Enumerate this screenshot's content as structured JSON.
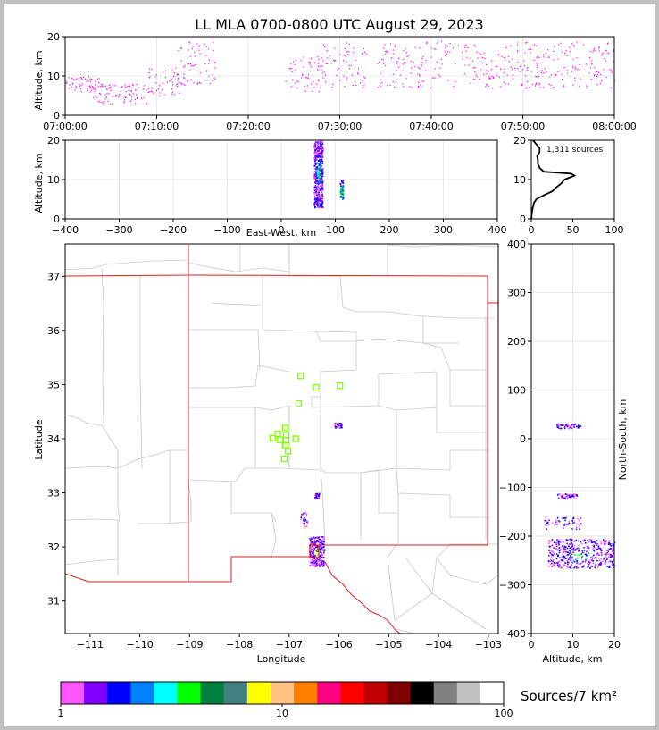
{
  "chart_data": [
    {
      "id": "time-height",
      "type": "scatter",
      "title": "LL MLA 0700-0800 UTC August 29, 2023",
      "ylabel": "Altitude, km",
      "xlim": [
        "07:00:00",
        "08:00:00"
      ],
      "ylim": [
        0,
        20
      ],
      "xticks": [
        "07:00:00",
        "07:10:00",
        "07:20:00",
        "07:30:00",
        "07:40:00",
        "07:50:00",
        "08:00:00"
      ],
      "yticks": [
        0,
        10,
        20
      ],
      "grid": true,
      "point_color": "#ff00ff",
      "bands": [
        {
          "x": [
            "07:00:00",
            "07:04:00"
          ],
          "y": [
            6,
            10
          ]
        },
        {
          "x": [
            "07:03:00",
            "07:09:00"
          ],
          "y": [
            3,
            8
          ]
        },
        {
          "x": [
            "07:09:00",
            "07:13:00"
          ],
          "y": [
            5,
            12
          ]
        },
        {
          "x": [
            "07:12:00",
            "07:16:30"
          ],
          "y": [
            8,
            19
          ]
        },
        {
          "x": [
            "07:24:00",
            "07:28:00"
          ],
          "y": [
            6,
            15
          ]
        },
        {
          "x": [
            "07:28:00",
            "07:33:00"
          ],
          "y": [
            7,
            19
          ]
        },
        {
          "x": [
            "07:34:00",
            "08:00:00"
          ],
          "y": [
            7,
            19
          ]
        }
      ]
    },
    {
      "id": "ew-height",
      "type": "heatmap",
      "xlabel": "East-West, km",
      "ylabel": "Altitude, km",
      "xlim": [
        -400,
        400
      ],
      "ylim": [
        0,
        20
      ],
      "xticks": [
        -400,
        -300,
        -200,
        -100,
        0,
        100,
        200,
        300,
        400
      ],
      "yticks": [
        0,
        10,
        20
      ],
      "grid": true,
      "clusters": [
        {
          "x": [
            60,
            76
          ],
          "y": [
            3,
            20
          ],
          "peak": [
            69,
            12
          ]
        },
        {
          "x": [
            108,
            114
          ],
          "y": [
            5,
            10
          ],
          "peak": [
            111,
            7
          ]
        }
      ]
    },
    {
      "id": "altitude-histogram",
      "type": "line",
      "annotation": "1,311 sources",
      "xlim": [
        0,
        100
      ],
      "ylim": [
        0,
        20
      ],
      "xticks": [
        0,
        50,
        100
      ],
      "yticks": [
        0,
        10,
        20
      ],
      "altitude": [
        0,
        2,
        4,
        5,
        6,
        7,
        8,
        9,
        10,
        11,
        11.5,
        12,
        13,
        14,
        15,
        16,
        17,
        18,
        19,
        20
      ],
      "count": [
        0,
        1,
        3,
        6,
        15,
        25,
        30,
        36,
        40,
        52,
        48,
        15,
        10,
        8,
        8,
        7,
        10,
        10,
        6,
        2
      ]
    },
    {
      "id": "plan-view",
      "type": "scatter",
      "xlabel": "Longitude",
      "ylabel": "Latitude",
      "xlim": [
        -111.5,
        -102.8
      ],
      "ylim": [
        30.4,
        37.6
      ],
      "xticks": [
        -111,
        -110,
        -109,
        -108,
        -107,
        -106,
        -105,
        -104,
        -103
      ],
      "yticks": [
        31,
        32,
        33,
        34,
        35,
        36,
        37
      ],
      "stations_color": "#7fff00",
      "stations": [
        {
          "lon": -106.77,
          "lat": 35.16
        },
        {
          "lon": -106.46,
          "lat": 34.95
        },
        {
          "lon": -105.98,
          "lat": 34.98
        },
        {
          "lon": -106.81,
          "lat": 34.65
        },
        {
          "lon": -107.08,
          "lat": 34.2
        },
        {
          "lon": -107.23,
          "lat": 34.09
        },
        {
          "lon": -107.06,
          "lat": 34.07
        },
        {
          "lon": -107.33,
          "lat": 34.01
        },
        {
          "lon": -107.18,
          "lat": 33.98
        },
        {
          "lon": -107.06,
          "lat": 33.97
        },
        {
          "lon": -106.87,
          "lat": 34.0
        },
        {
          "lon": -107.08,
          "lat": 33.88
        },
        {
          "lon": -107.02,
          "lat": 33.77
        },
        {
          "lon": -107.1,
          "lat": 33.63
        }
      ],
      "clusters": [
        {
          "lon": [
            -106.1,
            -105.95
          ],
          "lat": [
            34.2,
            34.3
          ]
        },
        {
          "lon": [
            -106.5,
            -106.4
          ],
          "lat": [
            32.9,
            33.0
          ]
        },
        {
          "lon": [
            -106.78,
            -106.65
          ],
          "lat": [
            32.38,
            32.65
          ]
        },
        {
          "lon": [
            -106.6,
            -106.3
          ],
          "lat": [
            31.65,
            32.2
          ]
        }
      ]
    },
    {
      "id": "height-ns",
      "type": "heatmap",
      "xlabel": "Altitude, km",
      "ylabel": "North-South, km",
      "xlim": [
        0,
        20
      ],
      "ylim": [
        -400,
        400
      ],
      "xticks": [
        0,
        10,
        20
      ],
      "yticks": [
        -400,
        -300,
        -200,
        -100,
        0,
        100,
        200,
        300,
        400
      ],
      "grid": true,
      "clusters": [
        {
          "x": [
            6,
            12
          ],
          "y": [
            22,
            32
          ]
        },
        {
          "x": [
            6,
            11
          ],
          "y": [
            -122,
            -112
          ]
        },
        {
          "x": [
            3,
            12
          ],
          "y": [
            -185,
            -160
          ]
        },
        {
          "x": [
            4,
            20
          ],
          "y": [
            -265,
            -205
          ],
          "peak": [
            11,
            -238
          ]
        }
      ]
    },
    {
      "id": "colorbar",
      "type": "heatmap",
      "label": "Sources/7 km²",
      "scale": "log",
      "range": [
        1,
        100
      ],
      "tick_labels": [
        "1",
        "10",
        "100"
      ],
      "colors": [
        "#ff55ff",
        "#8000ff",
        "#0000ff",
        "#0080ff",
        "#00ffff",
        "#00ff00",
        "#008040",
        "#408080",
        "#ffff00",
        "#ffc080",
        "#ff8000",
        "#ff0080",
        "#ff0000",
        "#c00000",
        "#800000",
        "#000000",
        "#808080",
        "#c0c0c0",
        "#ffffff"
      ]
    }
  ]
}
